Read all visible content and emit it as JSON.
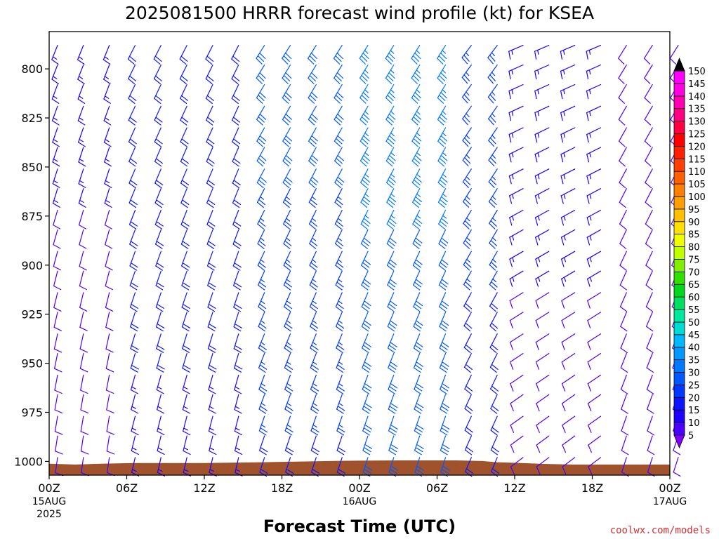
{
  "chart_data": {
    "type": "wind-barb-profile",
    "title": "2025081500 HRRR forecast wind profile (kt) for KSEA",
    "xlabel": "Forecast Time (UTC)",
    "ylabel": "",
    "credit": "coolwx.com/models",
    "y_axis": {
      "unit": "hPa",
      "range": [
        1007,
        781
      ],
      "ticks": [
        800,
        825,
        850,
        875,
        900,
        925,
        950,
        975,
        1000
      ],
      "tick_labels": [
        "800",
        "825",
        "850",
        "875",
        "900",
        "925",
        "950",
        "975",
        "1000"
      ]
    },
    "x_axis": {
      "range_hours": [
        0,
        48
      ],
      "ticks": [
        {
          "hour": 0,
          "label": "00Z",
          "sub1": "15AUG",
          "sub2": "2025"
        },
        {
          "hour": 6,
          "label": "06Z",
          "sub1": "",
          "sub2": ""
        },
        {
          "hour": 12,
          "label": "12Z",
          "sub1": "",
          "sub2": ""
        },
        {
          "hour": 18,
          "label": "18Z",
          "sub1": "",
          "sub2": ""
        },
        {
          "hour": 24,
          "label": "00Z",
          "sub1": "16AUG",
          "sub2": ""
        },
        {
          "hour": 30,
          "label": "06Z",
          "sub1": "",
          "sub2": ""
        },
        {
          "hour": 36,
          "label": "12Z",
          "sub1": "",
          "sub2": ""
        },
        {
          "hour": 42,
          "label": "18Z",
          "sub1": "",
          "sub2": ""
        },
        {
          "hour": 48,
          "label": "00Z",
          "sub1": "17AUG",
          "sub2": ""
        }
      ]
    },
    "colorbar": {
      "levels": [
        "5",
        "10",
        "15",
        "20",
        "25",
        "30",
        "35",
        "40",
        "45",
        "50",
        "55",
        "60",
        "65",
        "70",
        "75",
        "80",
        "85",
        "90",
        "95",
        "100",
        "105",
        "110",
        "115",
        "120",
        "125",
        "130",
        "135",
        "140",
        "145",
        "150"
      ],
      "colors": [
        "#7f00ff",
        "#4a00ff",
        "#1e00ff",
        "#0a14ff",
        "#0038ff",
        "#0058ff",
        "#0078ff",
        "#0098ff",
        "#00b8ff",
        "#00dcd2",
        "#00e8a0",
        "#00e060",
        "#00d820",
        "#30e000",
        "#80f000",
        "#c0ff00",
        "#f0ff00",
        "#ffe000",
        "#ffc000",
        "#ffa000",
        "#ff8000",
        "#ff6000",
        "#ff4000",
        "#ff2000",
        "#ff0000",
        "#ff0040",
        "#ff0080",
        "#ff00b0",
        "#ff00e0",
        "#ff00ff"
      ]
    },
    "terrain_color": "#a0522d",
    "surface_pressure": [
      {
        "hour": 0,
        "hPa": 1001.2
      },
      {
        "hour": 2,
        "hPa": 1001.6
      },
      {
        "hour": 4,
        "hPa": 1001.2
      },
      {
        "hour": 6.5,
        "hPa": 1000.8
      },
      {
        "hour": 12,
        "hPa": 1000.8
      },
      {
        "hour": 17.5,
        "hPa": 1000.3
      },
      {
        "hour": 22.5,
        "hPa": 999.7
      },
      {
        "hour": 27,
        "hPa": 999.5
      },
      {
        "hour": 31.5,
        "hPa": 999.5
      },
      {
        "hour": 33.5,
        "hPa": 999.8
      },
      {
        "hour": 34.5,
        "hPa": 1000.4
      },
      {
        "hour": 36.5,
        "hPa": 1000.8
      },
      {
        "hour": 38.5,
        "hPa": 1001.3
      },
      {
        "hour": 40.5,
        "hPa": 1001.6
      },
      {
        "hour": 48,
        "hPa": 1001.6
      }
    ],
    "barb_columns_hours": [
      0,
      2,
      4,
      6,
      8,
      10,
      12,
      14,
      16,
      18,
      20,
      22,
      24,
      26,
      28,
      30,
      32,
      34,
      36,
      38,
      40,
      42,
      44,
      46,
      48
    ],
    "barb_levels_hPa": [
      788,
      798,
      808,
      819,
      830,
      840,
      851,
      861,
      872,
      882,
      893,
      903,
      914,
      924,
      935,
      945,
      956,
      966,
      977,
      987,
      998
    ],
    "barb_segments": [
      {
        "hours": [
          0,
          4
        ],
        "dir_deg": 195,
        "speed_kt": [
          10,
          14
        ]
      },
      {
        "hours": [
          6,
          14
        ],
        "dir_deg": 200,
        "speed_kt": [
          16,
          22
        ]
      },
      {
        "hours": [
          16,
          22
        ],
        "dir_deg": 205,
        "speed_kt": [
          22,
          30
        ]
      },
      {
        "hours": [
          24,
          30
        ],
        "dir_deg": 205,
        "speed_kt": [
          28,
          36
        ]
      },
      {
        "hours": [
          32,
          34
        ],
        "dir_deg": 210,
        "speed_kt": [
          20,
          26
        ]
      },
      {
        "hours": [
          36,
          42
        ],
        "dir_deg": 240,
        "speed_kt": [
          10,
          16
        ]
      },
      {
        "hours": [
          44,
          48
        ],
        "dir_deg": 205,
        "speed_kt": [
          8,
          12
        ]
      }
    ]
  }
}
